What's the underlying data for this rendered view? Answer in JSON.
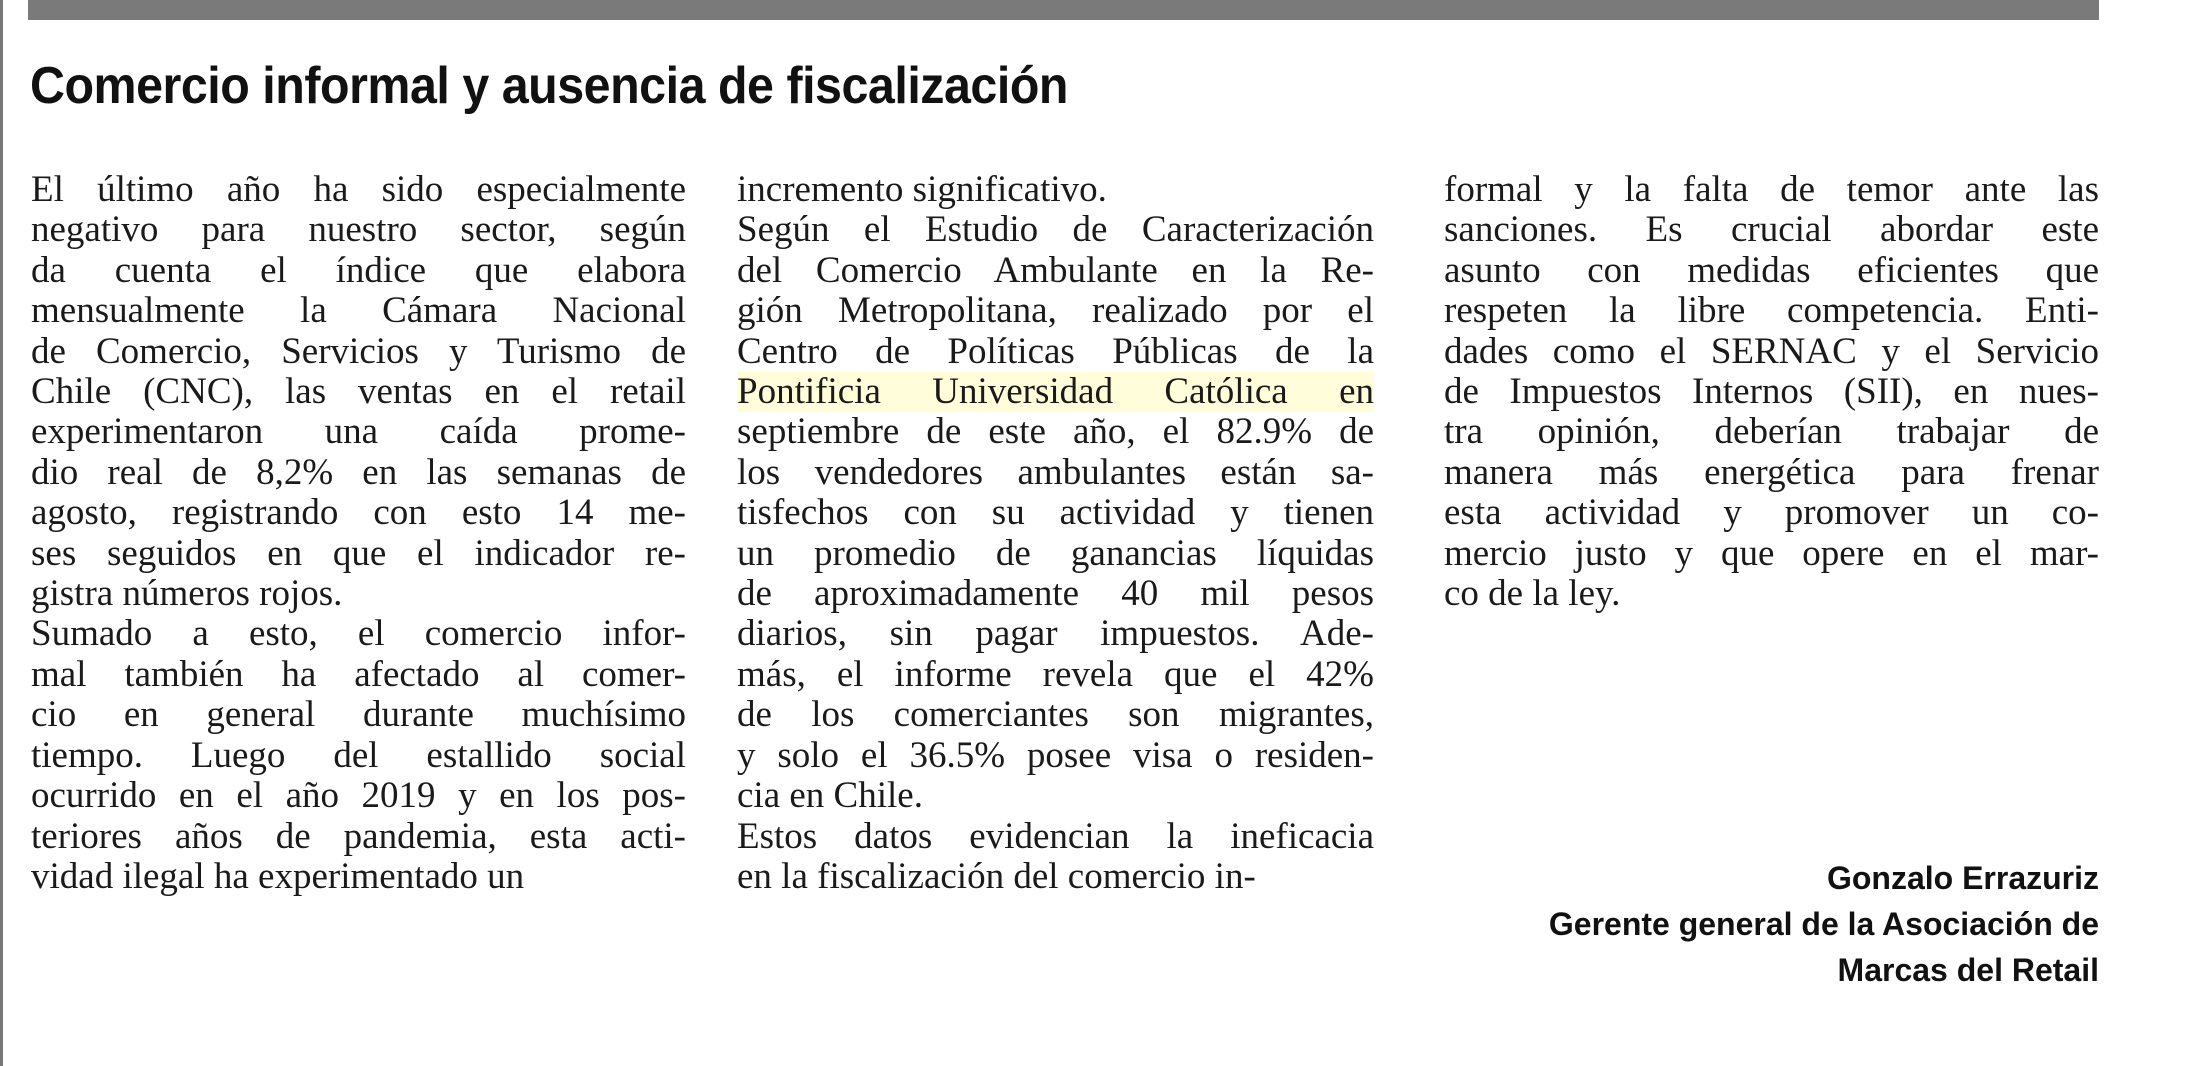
{
  "article": {
    "title": "Comercio informal y ausencia de fiscalización",
    "columns": [
      [
        "El último año ha sido especialmente",
        "negativo para nuestro sector, según",
        "da cuenta el índice que elabora",
        "mensualmente la Cámara Nacional",
        "de Comercio, Servicios y Turismo de",
        "Chile (CNC), las ventas en el retail",
        "experimentaron una caída prome-",
        "dio real de 8,2% en las semanas de",
        "agosto, registrando con esto 14 me-",
        "ses seguidos en que el indicador re-",
        "gistra números rojos.",
        "Sumado a esto, el comercio infor-",
        "mal también ha afectado al comer-",
        "cio en general durante muchísimo",
        "tiempo. Luego del estallido social",
        "ocurrido en el año 2019 y en los pos-",
        "teriores años de pandemia, esta acti-",
        "vidad ilegal ha experimentado un"
      ],
      [
        "incremento significativo.",
        "Según el Estudio de Caracterización",
        "del Comercio Ambulante en la Re-",
        "gión Metropolitana, realizado por el",
        "Centro de Políticas Públicas de la",
        "Pontificia Universidad Católica en",
        "septiembre de este año, el 82.9% de",
        "los vendedores ambulantes están sa-",
        "tisfechos con su actividad y tienen",
        "un promedio de ganancias líquidas",
        "de aproximadamente 40 mil pesos",
        "diarios, sin pagar impuestos. Ade-",
        "más, el informe revela que el 42%",
        "de los comerciantes son migrantes,",
        "y solo el 36.5% posee visa o residen-",
        "cia en Chile.",
        "Estos datos evidencian la ineficacia",
        "en la fiscalización del comercio in-"
      ],
      [
        "formal y la falta de temor ante las",
        "sanciones. Es crucial abordar este",
        "asunto con medidas eficientes que",
        "respeten la libre competencia. Enti-",
        "dades como el SERNAC y el Servicio",
        "de Impuestos Internos (SII), en nues-",
        "tra opinión, deberían trabajar de",
        "manera más energética para frenar",
        "esta actividad y promover un co-",
        "mercio justo y que opere en el mar-",
        "co de la ley."
      ]
    ],
    "last_lines": {
      "0": [
        10,
        17
      ],
      "1": [
        0,
        15,
        17
      ],
      "2": [
        10
      ]
    },
    "signature": {
      "name": "Gonzalo Errazuriz",
      "role_line1": "Gerente general de la Asociación de",
      "role_line2": "Marcas del Retail"
    }
  }
}
